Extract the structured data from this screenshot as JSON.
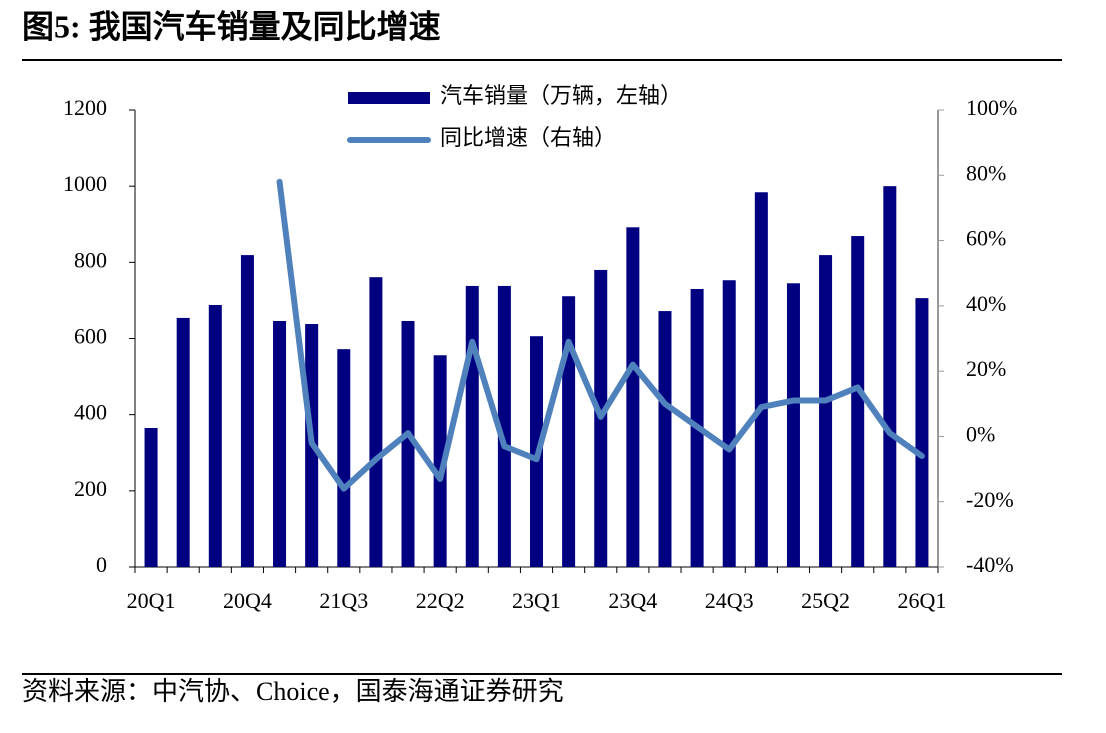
{
  "title": "图5:  我国汽车销量及同比增速",
  "source": "资料来源：中汽协、Choice，国泰海通证券研究",
  "chart_data": {
    "type": "bar-line",
    "categories": [
      "20Q1",
      null,
      null,
      "20Q4",
      null,
      null,
      "21Q3",
      null,
      null,
      "22Q2",
      null,
      null,
      "23Q1",
      null,
      null,
      "23Q4",
      null,
      null,
      "24Q3",
      null,
      null,
      "25Q2",
      null,
      null,
      "26Q1"
    ],
    "series": [
      {
        "name": "汽车销量（万辆，左轴）",
        "type": "bar",
        "color": "#000080",
        "values": [
          365,
          654,
          688,
          819,
          646,
          638,
          572,
          761,
          646,
          556,
          738,
          738,
          606,
          711,
          780,
          892,
          672,
          730,
          753,
          984,
          745,
          819,
          869,
          1000,
          706
        ]
      },
      {
        "name": "同比增速（右轴）",
        "type": "line",
        "axis": "y2",
        "color": "#4f81bd",
        "values": [
          null,
          null,
          null,
          null,
          78,
          -2,
          -16,
          -7,
          1,
          -13,
          29,
          -3,
          -7,
          29,
          6,
          22,
          10,
          3,
          -4,
          9,
          11,
          11,
          15,
          1,
          -6
        ]
      }
    ],
    "ylim": [
      0,
      1200
    ],
    "yticks": [
      0,
      200,
      400,
      600,
      800,
      1000,
      1200
    ],
    "y2lim": [
      -40,
      100
    ],
    "y2ticks": [
      {
        "value": -40,
        "label": "-40%"
      },
      {
        "value": -20,
        "label": "-20%"
      },
      {
        "value": 0,
        "label": "0%"
      },
      {
        "value": 20,
        "label": "20%"
      },
      {
        "value": 40,
        "label": "40%"
      },
      {
        "value": 60,
        "label": "60%"
      },
      {
        "value": 80,
        "label": "80%"
      },
      {
        "value": 100,
        "label": "100%"
      }
    ],
    "legend": "top",
    "grid": false
  }
}
